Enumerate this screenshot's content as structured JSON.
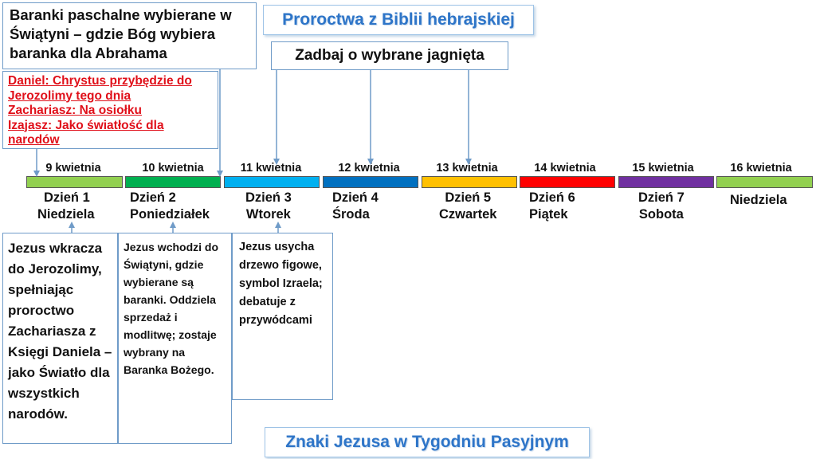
{
  "top_left_note": "Baranki paschalne wybierane w Świątyni – gdzie Bóg wybiera baranka dla Abrahama",
  "title_top": "Proroctwa z Biblii hebrajskiej",
  "care_note": "Zadbaj o wybrane jagnięta",
  "prophecies": [
    "Daniel: Chrystus przybędzie do Jerozolimy tego dnia",
    "Zachariasz: Na osiołku",
    "Izajasz: Jako światłość dla narodów"
  ],
  "days": [
    {
      "date": "9 kwietnia",
      "line1": "Dzień 1",
      "line2": "Niedziela",
      "color": "#92d050"
    },
    {
      "date": "10 kwietnia",
      "line1": "Dzień 2",
      "line2": "Poniedziałek",
      "color": "#00b050"
    },
    {
      "date": "11 kwietnia",
      "line1": "Dzień 3",
      "line2": "Wtorek",
      "color": "#00b0f0"
    },
    {
      "date": "12 kwietnia",
      "line1": "Dzień 4",
      "line2": "Środa",
      "color": "#0070c0"
    },
    {
      "date": "13 kwietnia",
      "line1": "Dzień 5",
      "line2": "Czwartek",
      "color": "#ffc000"
    },
    {
      "date": "14 kwietnia",
      "line1": "Dzień 6",
      "line2": "Piątek",
      "color": "#ff0000"
    },
    {
      "date": "15 kwietnia",
      "line1": "Dzień 7",
      "line2": "Sobota",
      "color": "#7030a0"
    },
    {
      "date": "16 kwietnia",
      "line1": "",
      "line2": "Niedziela",
      "color": "#92d050"
    }
  ],
  "desc_day1": "Jezus wkracza do Jerozolimy, spełniając proroctwo Zachariasza z Księgi Daniela – jako Światło dla wszystkich narodów.",
  "desc_day2": "Jezus wchodzi do Świątyni, gdzie wybierane są baranki. Oddziela sprzedaż i modlitwę; zostaje wybrany na Baranka Bożego.",
  "desc_day3": "Jezus usycha drzewo figowe, symbol Izraela; debatuje z przywódcami",
  "title_bottom": "Znaki Jezusa w Tygodniu Pasyjnym",
  "colors": {
    "title_blue": "#2e75c8",
    "border_blue": "#6f9bc8",
    "prophecy_red": "#e0101a"
  }
}
